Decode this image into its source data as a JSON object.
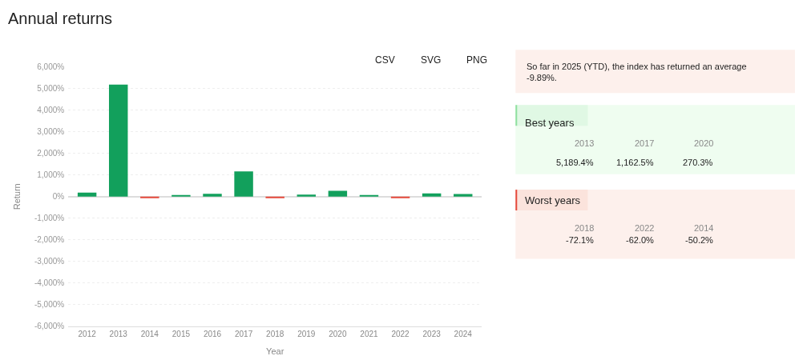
{
  "chart_data": [
    {
      "type": "bar",
      "title": "Annual returns",
      "xlabel": "Year",
      "ylabel": "Return",
      "categories": [
        "2012",
        "2013",
        "2014",
        "2015",
        "2016",
        "2017",
        "2018",
        "2019",
        "2020",
        "2021",
        "2022",
        "2023",
        "2024"
      ],
      "values": [
        190,
        5189.4,
        -50.2,
        40,
        130,
        1162.5,
        -72.1,
        90,
        270.3,
        60,
        -62.0,
        150,
        120
      ],
      "colors": [
        "#12a05c",
        "#12a05c",
        "#e5483b",
        "#12a05c",
        "#12a05c",
        "#12a05c",
        "#e5483b",
        "#12a05c",
        "#12a05c",
        "#12a05c",
        "#e5483b",
        "#12a05c",
        "#12a05c"
      ],
      "ylim": [
        -6000,
        6000
      ],
      "yticks": [
        {
          "value": -6000,
          "label": "-6,000%"
        },
        {
          "value": -5000,
          "label": "-5,000%"
        },
        {
          "value": -4000,
          "label": "-4,000%"
        },
        {
          "value": -3000,
          "label": "-3,000%"
        },
        {
          "value": -2000,
          "label": "-2,000%"
        },
        {
          "value": -1000,
          "label": "-1,000%"
        },
        {
          "value": 0,
          "label": "0%"
        },
        {
          "value": 1000,
          "label": "1,000%"
        },
        {
          "value": 2000,
          "label": "2,000%"
        },
        {
          "value": 3000,
          "label": "3,000%"
        },
        {
          "value": 4000,
          "label": "4,000%"
        },
        {
          "value": 5000,
          "label": "5,000%"
        },
        {
          "value": 6000,
          "label": "6,000%"
        }
      ],
      "grid": "y",
      "annotations": [
        "CSV",
        "SVG",
        "PNG"
      ]
    },
    {
      "type": "other",
      "annotations": [
        "So far in 2025 (YTD), the index has returned an average -9.89%."
      ]
    },
    {
      "type": "other",
      "title": "Best years",
      "categories": [
        "2013",
        "2017",
        "2020"
      ],
      "values": [
        5189.4,
        1162.5,
        270.3
      ],
      "value_labels": [
        "5,189.4%",
        "1,162.5%",
        "270.3%"
      ],
      "color": "#effdf0"
    },
    {
      "type": "other",
      "title": "Worst years",
      "categories": [
        "2018",
        "2022",
        "2014"
      ],
      "values": [
        -72.1,
        -62.0,
        -50.2
      ],
      "value_labels": [
        "-72.1%",
        "-62.0%",
        "-50.2%"
      ],
      "color": "#fdf0ec"
    }
  ]
}
